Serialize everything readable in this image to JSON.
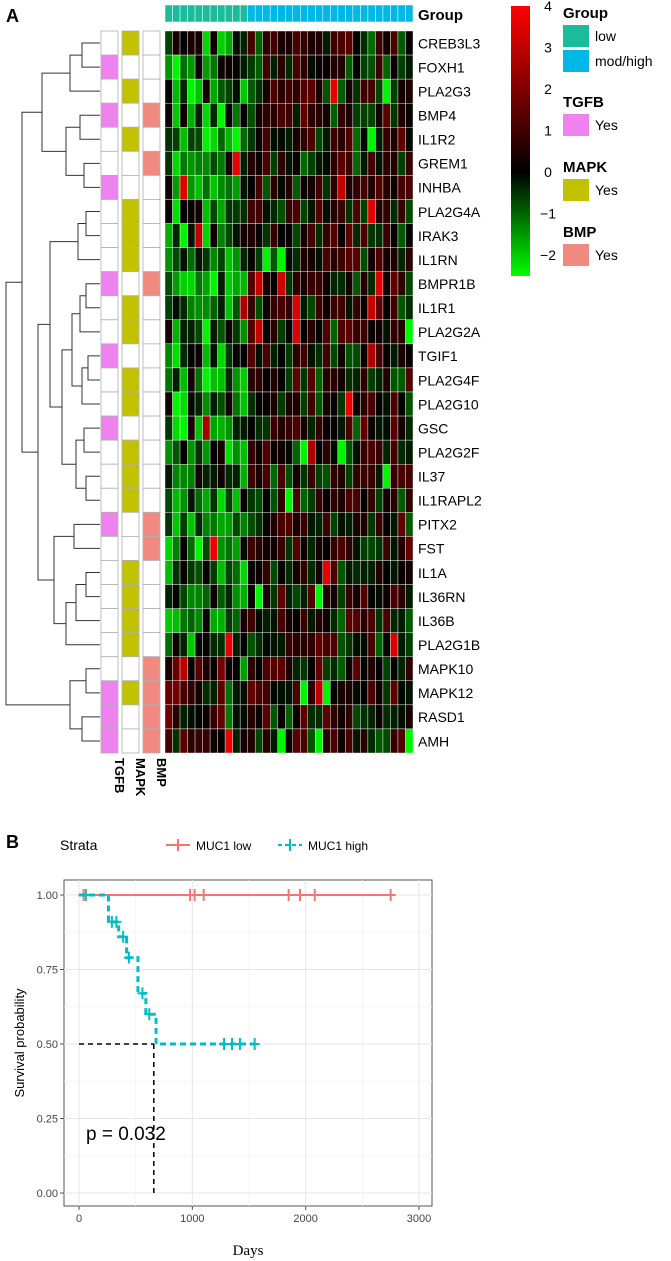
{
  "panel_a": {
    "label": "A",
    "group_title": "Group",
    "annotation_columns": [
      "TGFB",
      "MAPK",
      "BMP"
    ],
    "legend": {
      "colorbar_ticks": [
        "4",
        "3",
        "2",
        "1",
        "0",
        "−1",
        "−2"
      ],
      "group": {
        "title": "Group",
        "items": [
          {
            "label": "low",
            "color": "#1abc9c"
          },
          {
            "label": "mod/high",
            "color": "#00b8e6"
          }
        ]
      },
      "tgfb": {
        "title": "TGFB",
        "label": "Yes",
        "color": "#ee82ee"
      },
      "mapk": {
        "title": "MAPK",
        "label": "Yes",
        "color": "#c2c200"
      },
      "bmp": {
        "title": "BMP",
        "label": "Yes",
        "color": "#f08a80"
      }
    }
  },
  "panel_b": {
    "label": "B",
    "legend_title": "Strata",
    "p_value": "p = 0.032"
  },
  "chart_data": [
    {
      "type": "heatmap",
      "title": "",
      "columns": 33,
      "group_annotation": {
        "low": 11,
        "mod/high": 22
      },
      "color_scale": {
        "min": -2.5,
        "mid": 0,
        "max": 4,
        "low_color": "#00ff00",
        "mid_color": "#000000",
        "high_color": "#ff0000"
      },
      "rows": [
        {
          "gene": "CREB3L3",
          "TGFB": false,
          "MAPK": true,
          "BMP": false
        },
        {
          "gene": "FOXH1",
          "TGFB": true,
          "MAPK": false,
          "BMP": false
        },
        {
          "gene": "PLA2G3",
          "TGFB": false,
          "MAPK": true,
          "BMP": false
        },
        {
          "gene": "BMP4",
          "TGFB": true,
          "MAPK": false,
          "BMP": true
        },
        {
          "gene": "IL1R2",
          "TGFB": false,
          "MAPK": true,
          "BMP": false
        },
        {
          "gene": "GREM1",
          "TGFB": false,
          "MAPK": false,
          "BMP": true
        },
        {
          "gene": "INHBA",
          "TGFB": true,
          "MAPK": false,
          "BMP": false
        },
        {
          "gene": "PLA2G4A",
          "TGFB": false,
          "MAPK": true,
          "BMP": false
        },
        {
          "gene": "IRAK3",
          "TGFB": false,
          "MAPK": true,
          "BMP": false
        },
        {
          "gene": "IL1RN",
          "TGFB": false,
          "MAPK": true,
          "BMP": false
        },
        {
          "gene": "BMPR1B",
          "TGFB": true,
          "MAPK": false,
          "BMP": true
        },
        {
          "gene": "IL1R1",
          "TGFB": false,
          "MAPK": true,
          "BMP": false
        },
        {
          "gene": "PLA2G2A",
          "TGFB": false,
          "MAPK": true,
          "BMP": false
        },
        {
          "gene": "TGIF1",
          "TGFB": true,
          "MAPK": false,
          "BMP": false
        },
        {
          "gene": "PLA2G4F",
          "TGFB": false,
          "MAPK": true,
          "BMP": false
        },
        {
          "gene": "PLA2G10",
          "TGFB": false,
          "MAPK": true,
          "BMP": false
        },
        {
          "gene": "GSC",
          "TGFB": true,
          "MAPK": false,
          "BMP": false
        },
        {
          "gene": "PLA2G2F",
          "TGFB": false,
          "MAPK": true,
          "BMP": false
        },
        {
          "gene": "IL37",
          "TGFB": false,
          "MAPK": true,
          "BMP": false
        },
        {
          "gene": "IL1RAPL2",
          "TGFB": false,
          "MAPK": true,
          "BMP": false
        },
        {
          "gene": "PITX2",
          "TGFB": true,
          "MAPK": false,
          "BMP": true
        },
        {
          "gene": "FST",
          "TGFB": false,
          "MAPK": false,
          "BMP": true
        },
        {
          "gene": "IL1A",
          "TGFB": false,
          "MAPK": true,
          "BMP": false
        },
        {
          "gene": "IL36RN",
          "TGFB": false,
          "MAPK": true,
          "BMP": false
        },
        {
          "gene": "IL36B",
          "TGFB": false,
          "MAPK": true,
          "BMP": false
        },
        {
          "gene": "PLA2G1B",
          "TGFB": false,
          "MAPK": true,
          "BMP": false
        },
        {
          "gene": "MAPK10",
          "TGFB": false,
          "MAPK": false,
          "BMP": true
        },
        {
          "gene": "MAPK12",
          "TGFB": true,
          "MAPK": true,
          "BMP": true
        },
        {
          "gene": "RASD1",
          "TGFB": true,
          "MAPK": false,
          "BMP": true
        },
        {
          "gene": "AMH",
          "TGFB": true,
          "MAPK": false,
          "BMP": true
        }
      ]
    },
    {
      "type": "line",
      "title": "",
      "xlabel": "Days",
      "ylabel": "Survival probability",
      "xlim": [
        0,
        3000
      ],
      "ylim": [
        0,
        1
      ],
      "xticks": [
        0,
        1000,
        2000,
        3000
      ],
      "yticks": [
        "0.00",
        "0.25",
        "0.50",
        "0.75",
        "1.00"
      ],
      "median_survival_days": 660,
      "series": [
        {
          "name": "MUC1 low",
          "color": "#f2766e",
          "dash": "solid",
          "x": [
            0,
            2750
          ],
          "y": [
            1.0,
            1.0
          ],
          "censored_x": [
            40,
            980,
            1020,
            1100,
            1850,
            1950,
            2080,
            2750
          ]
        },
        {
          "name": "MUC1 high",
          "color": "#00bfc4",
          "dash": "dashed",
          "x": [
            0,
            180,
            260,
            350,
            420,
            520,
            590,
            680,
            1550
          ],
          "y": [
            1.0,
            1.0,
            0.91,
            0.86,
            0.79,
            0.67,
            0.6,
            0.5,
            0.5
          ],
          "censored_x": [
            60,
            290,
            330,
            390,
            440,
            560,
            620,
            1280,
            1350,
            1420,
            1550
          ]
        }
      ]
    }
  ]
}
